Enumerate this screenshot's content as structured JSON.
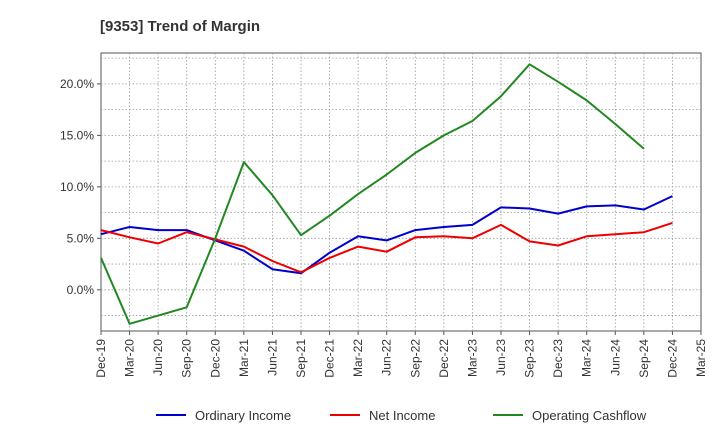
{
  "chart_data": {
    "type": "line",
    "title": "[9353]  Trend of Margin",
    "xlabel": "",
    "ylabel": "",
    "x": [
      "Dec-19",
      "Mar-20",
      "Jun-20",
      "Sep-20",
      "Dec-20",
      "Mar-21",
      "Jun-21",
      "Sep-21",
      "Dec-21",
      "Mar-22",
      "Jun-22",
      "Sep-22",
      "Dec-22",
      "Mar-23",
      "Jun-23",
      "Sep-23",
      "Dec-23",
      "Mar-24",
      "Jun-24",
      "Sep-24",
      "Dec-24",
      "Mar-25"
    ],
    "ylim": [
      -4.0,
      23.0
    ],
    "yticks": [
      0,
      5,
      10,
      15,
      20
    ],
    "ytick_labels": [
      "0.0%",
      "5.0%",
      "10.0%",
      "15.0%",
      "20.0%"
    ],
    "grid": true,
    "legend_position": "bottom",
    "series": [
      {
        "name": "Ordinary Income",
        "color": "#0000cc",
        "values": [
          5.4,
          6.1,
          5.8,
          5.8,
          4.8,
          3.8,
          2.0,
          1.6,
          3.6,
          5.2,
          4.8,
          5.8,
          6.1,
          6.3,
          8.0,
          7.9,
          7.4,
          8.1,
          8.2,
          7.8,
          9.1,
          null
        ]
      },
      {
        "name": "Net Income",
        "color": "#ee0000",
        "values": [
          5.8,
          5.1,
          4.5,
          5.6,
          4.9,
          4.2,
          2.8,
          1.7,
          3.1,
          4.2,
          3.7,
          5.1,
          5.2,
          5.0,
          6.3,
          4.7,
          4.3,
          5.2,
          5.4,
          5.6,
          6.5,
          null
        ]
      },
      {
        "name": "Operating Cashflow",
        "color": "#228822",
        "values": [
          3.1,
          -3.3,
          -2.5,
          -1.7,
          5.0,
          12.4,
          9.2,
          5.3,
          7.2,
          9.3,
          11.2,
          13.3,
          15.0,
          16.4,
          18.8,
          21.9,
          20.2,
          18.4,
          16.1,
          13.7,
          null,
          null
        ]
      }
    ]
  }
}
